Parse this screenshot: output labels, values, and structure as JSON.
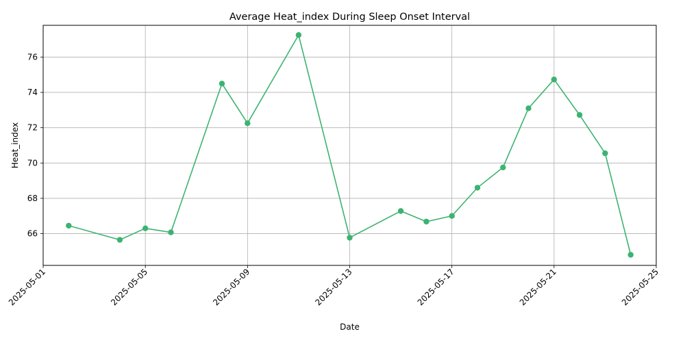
{
  "chart_data": {
    "type": "line",
    "title": "Average Heat_index During Sleep Onset Interval",
    "xlabel": "Date",
    "ylabel": "Heat_index",
    "x": [
      "2025-05-02",
      "2025-05-04",
      "2025-05-05",
      "2025-05-06",
      "2025-05-08",
      "2025-05-09",
      "2025-05-11",
      "2025-05-13",
      "2025-05-15",
      "2025-05-16",
      "2025-05-17",
      "2025-05-18",
      "2025-05-19",
      "2025-05-20",
      "2025-05-21",
      "2025-05-22",
      "2025-05-23",
      "2025-05-24"
    ],
    "series": [
      {
        "values": [
          66.45,
          65.65,
          66.3,
          66.07,
          74.5,
          72.25,
          77.25,
          65.77,
          67.28,
          66.68,
          67.0,
          68.6,
          69.75,
          73.1,
          74.73,
          72.72,
          70.55,
          64.8
        ]
      }
    ],
    "xticks": [
      "2025-05-01",
      "2025-05-05",
      "2025-05-09",
      "2025-05-13",
      "2025-05-17",
      "2025-05-21",
      "2025-05-25"
    ],
    "yticks": [
      66,
      68,
      70,
      72,
      74,
      76
    ],
    "xlim": [
      "2025-05-01",
      "2025-05-25"
    ],
    "ylim": [
      64.2,
      77.8
    ],
    "grid": true,
    "color": "#3cb371"
  }
}
